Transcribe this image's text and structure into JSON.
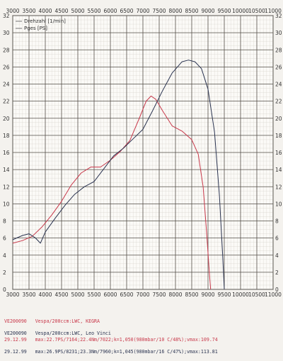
{
  "chart_data": {
    "type": "line",
    "title": "",
    "xlabel": "",
    "ylabel": "",
    "xlim": [
      3000,
      11000
    ],
    "ylim": [
      0,
      32
    ],
    "x_ticks": [
      "3000",
      "3500",
      "4000",
      "4500",
      "5000",
      "5500",
      "6000",
      "6500",
      "7000",
      "7500",
      "8000",
      "8500",
      "9000",
      "9500",
      "10000",
      "10500",
      "11000"
    ],
    "y_ticks": [
      "0",
      "2",
      "4",
      "6",
      "8",
      "10",
      "12",
      "14",
      "16",
      "18",
      "20",
      "22",
      "24",
      "26",
      "28",
      "30",
      "32"
    ],
    "legend": [
      "Drehzahl [1/min]",
      "Pges [PS]"
    ],
    "grid": true,
    "series": [
      {
        "name": "",
        "color": "#c8384a",
        "points": [
          [
            3000,
            5.4
          ],
          [
            3300,
            5.7
          ],
          [
            3600,
            6.2
          ],
          [
            3900,
            7.3
          ],
          [
            4200,
            8.7
          ],
          [
            4500,
            10.3
          ],
          [
            4800,
            12.2
          ],
          [
            5100,
            13.6
          ],
          [
            5400,
            14.3
          ],
          [
            5700,
            14.3
          ],
          [
            6000,
            15.1
          ],
          [
            6300,
            16.1
          ],
          [
            6600,
            17.4
          ],
          [
            6900,
            20.1
          ],
          [
            7100,
            22.0
          ],
          [
            7250,
            22.6
          ],
          [
            7400,
            22.2
          ],
          [
            7600,
            20.9
          ],
          [
            7900,
            19.1
          ],
          [
            8200,
            18.5
          ],
          [
            8500,
            17.5
          ],
          [
            8700,
            15.8
          ],
          [
            8850,
            12.0
          ],
          [
            8950,
            7.0
          ],
          [
            9050,
            1.5
          ],
          [
            9080,
            0
          ]
        ]
      },
      {
        "name": "",
        "color": "#2a3350",
        "points": [
          [
            3000,
            5.8
          ],
          [
            3300,
            6.3
          ],
          [
            3500,
            6.5
          ],
          [
            3700,
            6.0
          ],
          [
            3850,
            5.4
          ],
          [
            4000,
            6.7
          ],
          [
            4300,
            8.3
          ],
          [
            4600,
            9.8
          ],
          [
            4900,
            11.1
          ],
          [
            5200,
            12.0
          ],
          [
            5500,
            12.6
          ],
          [
            5800,
            14.1
          ],
          [
            6100,
            15.6
          ],
          [
            6400,
            16.5
          ],
          [
            6700,
            17.6
          ],
          [
            7000,
            18.7
          ],
          [
            7300,
            20.9
          ],
          [
            7600,
            23.2
          ],
          [
            7900,
            25.3
          ],
          [
            8200,
            26.6
          ],
          [
            8400,
            26.8
          ],
          [
            8600,
            26.6
          ],
          [
            8800,
            25.8
          ],
          [
            9000,
            23.4
          ],
          [
            9200,
            18.4
          ],
          [
            9350,
            11.0
          ],
          [
            9450,
            4.0
          ],
          [
            9500,
            0
          ]
        ]
      }
    ]
  },
  "info": {
    "run1": {
      "color": "#c8384a",
      "id": "VE200090",
      "date": "29.12.99",
      "desc": "Vespa/200ccm:LWC, KEGRA",
      "stats": "max:22.7PS/7164;22.4Nm/7022;k=1,050(980mbar/10 C/48%);vmax:109.74"
    },
    "run2": {
      "color": "#2a3350",
      "id": "VE200090",
      "date": "29.12.99",
      "desc": "Vespa/200ccm:LWC, Leo Vinci",
      "stats": "max:26.9PS/8231;23.3Nm/7960;k=1,045(980mbar/16 C/47%);vmax:113.81"
    }
  }
}
